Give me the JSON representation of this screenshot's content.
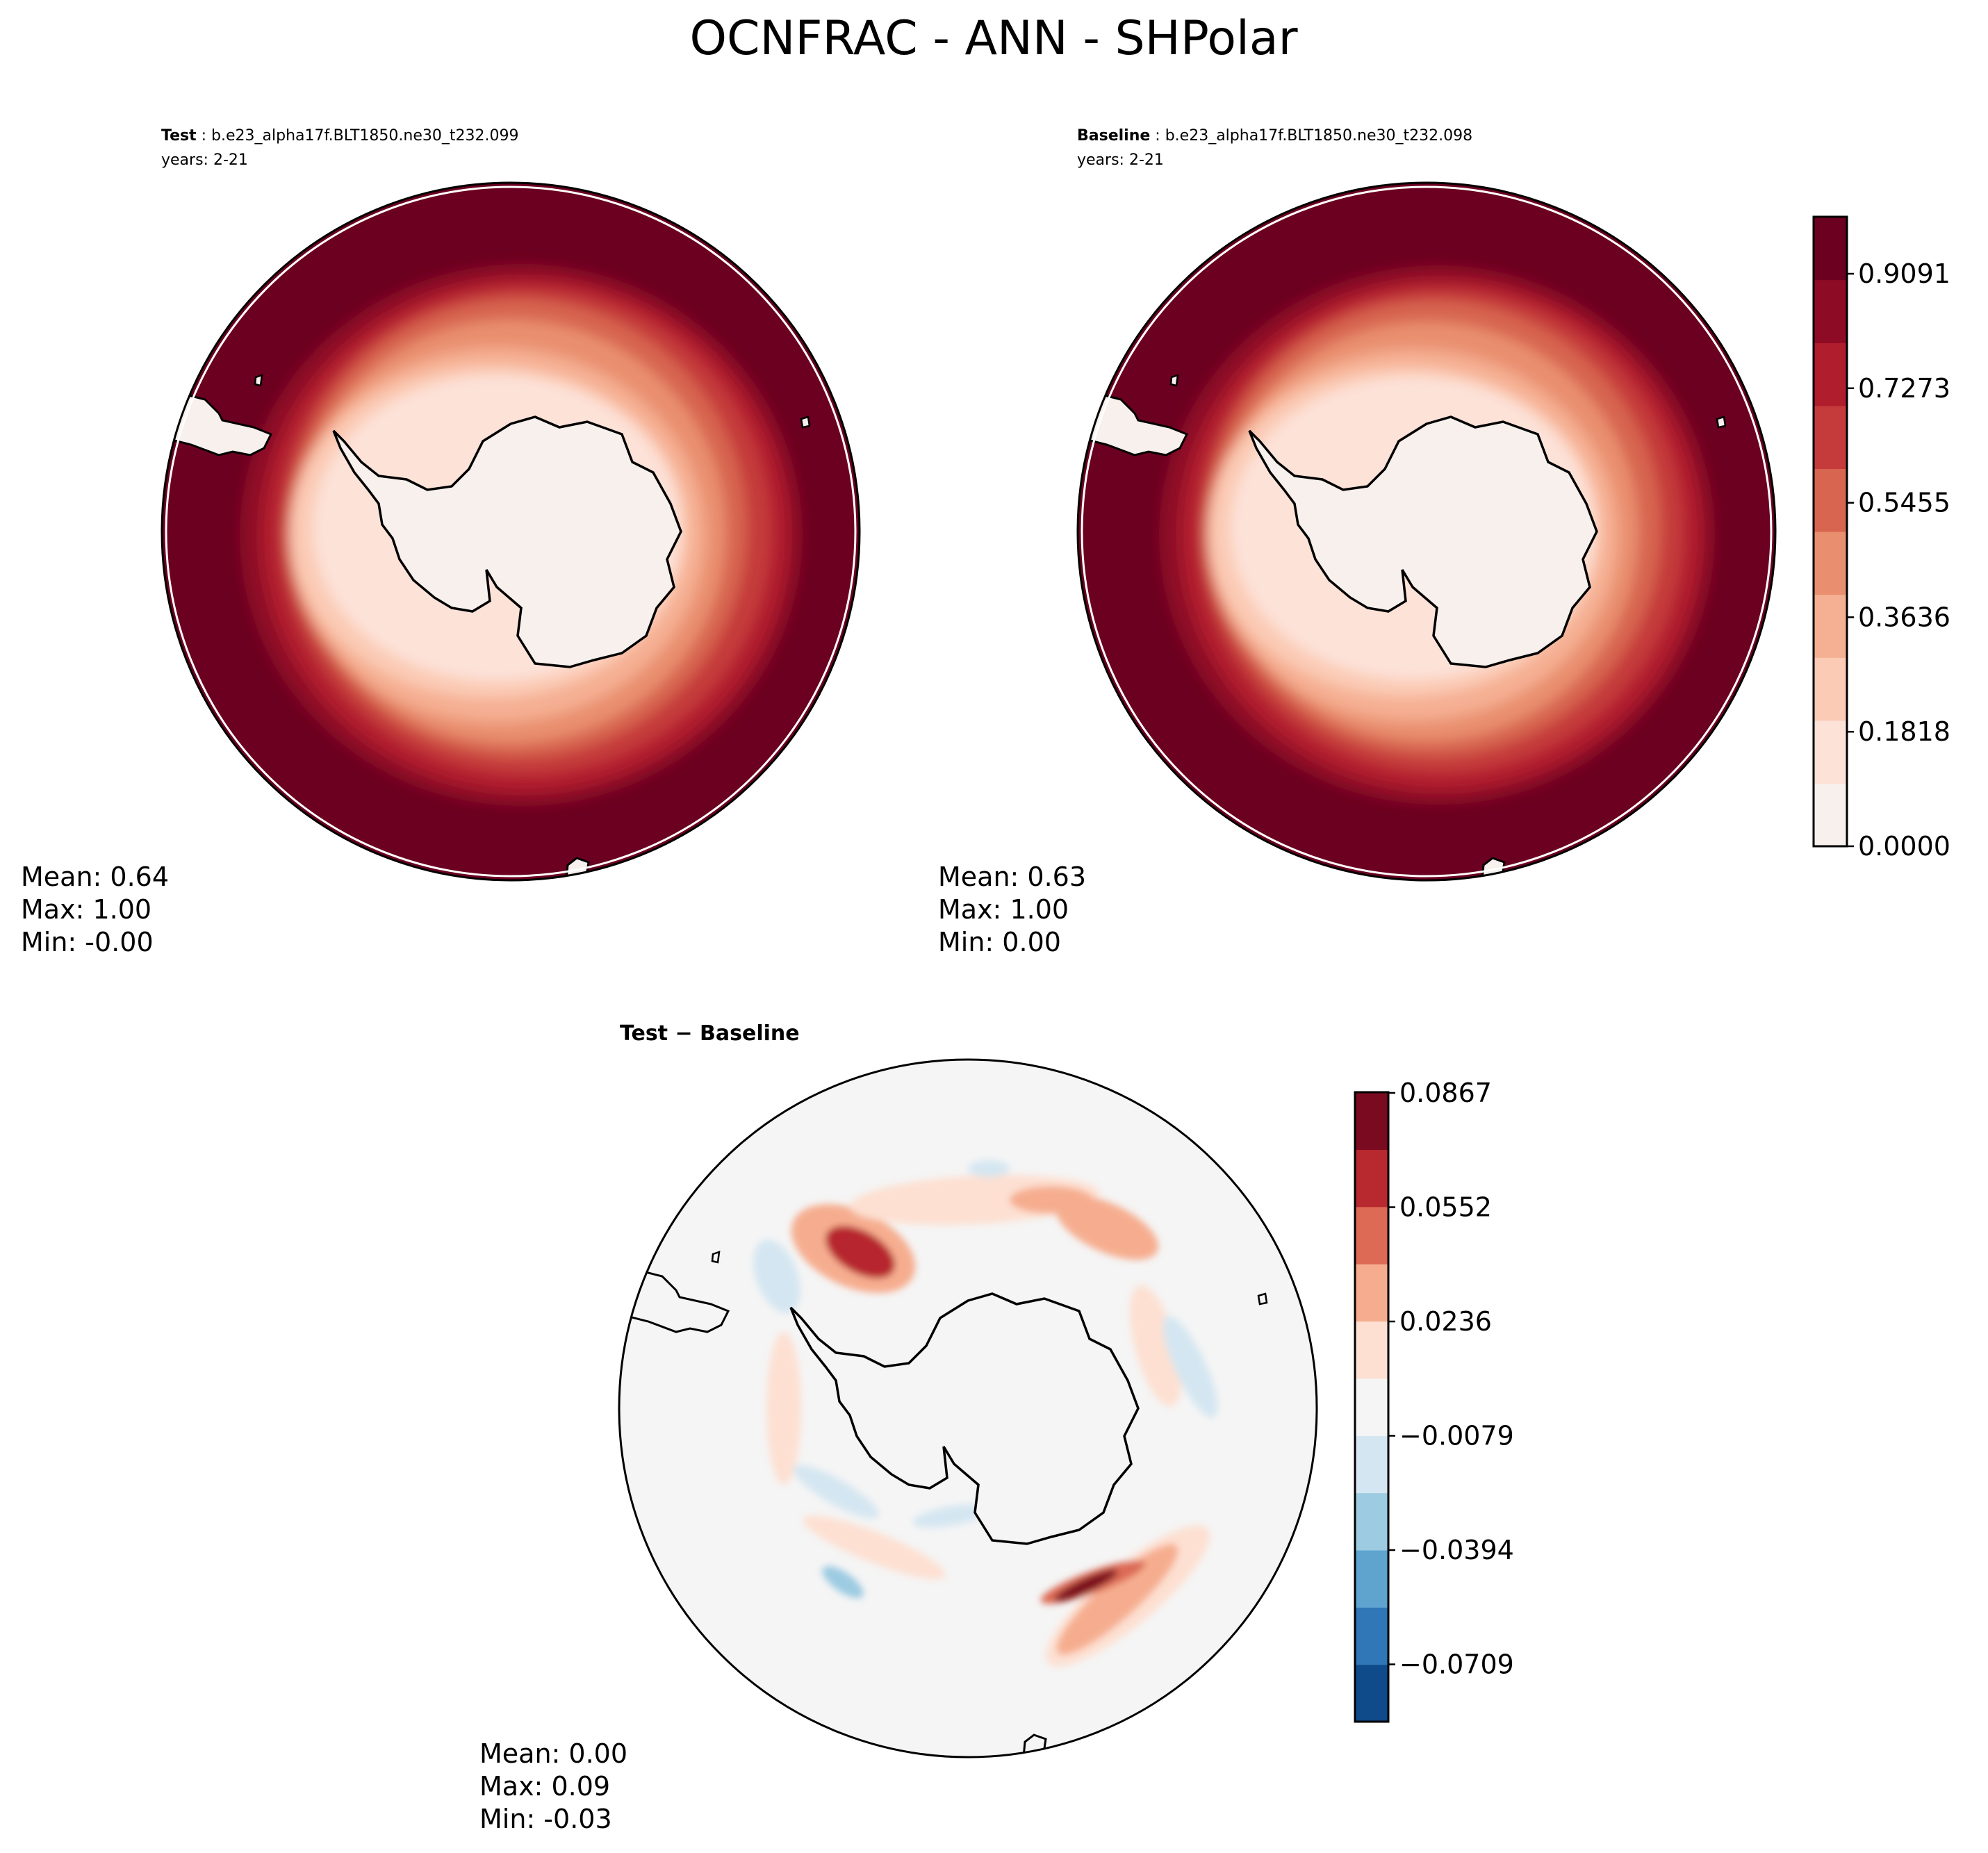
{
  "figure": {
    "title": "OCNFRAC - ANN - SHPolar"
  },
  "panels": {
    "test": {
      "label": "Test",
      "case": "b.e23_alpha17f.BLT1850.ne30_t232.099",
      "years": "years: 2-21",
      "stats": {
        "mean": "Mean:  0.64",
        "max": "Max:  1.00",
        "min": "Min: -0.00"
      }
    },
    "baseline": {
      "label": "Baseline",
      "case": "b.e23_alpha17f.BLT1850.ne30_t232.098",
      "years": "years: 2-21",
      "stats": {
        "mean": "Mean:  0.63",
        "max": "Max:  1.00",
        "min": "Min:  0.00"
      }
    },
    "diff": {
      "title": "Test − Baseline",
      "stats": {
        "mean": "Mean:  0.00",
        "max": "Max:  0.09",
        "min": "Min: -0.03"
      }
    }
  },
  "colorbars": {
    "main": {
      "ticks": [
        "0.9091",
        "0.7273",
        "0.5455",
        "0.3636",
        "0.1818",
        "0.0000"
      ],
      "colors": [
        "#f7f0ec",
        "#fde2d8",
        "#fbcbb5",
        "#f5af92",
        "#e98f70",
        "#d7654f",
        "#c53b3b",
        "#b01d2d",
        "#8e0b25",
        "#6b0020"
      ]
    },
    "diff": {
      "ticks": [
        "0.0867",
        "0.0552",
        "0.0236",
        "−0.0079",
        "−0.0394",
        "−0.0709"
      ],
      "colors": [
        "#0f4a8a",
        "#2f77b6",
        "#5ea4cf",
        "#9ccbe2",
        "#d4e6f1",
        "#f5f5f5",
        "#fde0d2",
        "#f6ad8f",
        "#dc6a55",
        "#b7282f",
        "#7a0a1f"
      ]
    }
  }
}
